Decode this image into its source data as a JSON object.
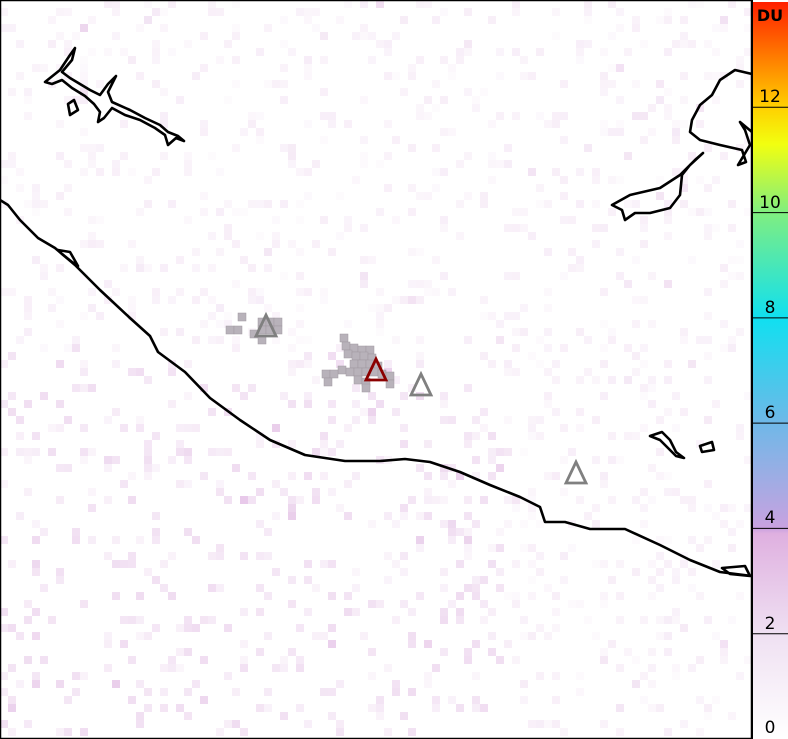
{
  "colorbar": {
    "unit": "DU",
    "ticks": [
      "0",
      "2",
      "4",
      "6",
      "8",
      "10",
      "12"
    ],
    "range": [
      0,
      14
    ],
    "color_stops": [
      {
        "value": 0,
        "color": "#ffffff"
      },
      {
        "value": 2,
        "color": "#efe0f2"
      },
      {
        "value": 3.9,
        "color": "#dfb0e0"
      },
      {
        "value": 4,
        "color": "#c9a2e0"
      },
      {
        "value": 6,
        "color": "#6fb8e8"
      },
      {
        "value": 8,
        "color": "#10e0f0"
      },
      {
        "value": 10,
        "color": "#80ee80"
      },
      {
        "value": 11.3,
        "color": "#f2ff10"
      },
      {
        "value": 12,
        "color": "#ffd000"
      },
      {
        "value": 14,
        "color": "#ff2000"
      }
    ]
  },
  "markers": [
    {
      "type": "volcano-triangle",
      "color": "#808080"
    },
    {
      "type": "volcano-triangle",
      "color": "#8b0000"
    },
    {
      "type": "volcano-triangle",
      "color": "#808080"
    },
    {
      "type": "volcano-triangle",
      "color": "#808080"
    }
  ],
  "colors": {
    "coastline": "#000000",
    "flagged_pixel": "#b8b2ba"
  }
}
